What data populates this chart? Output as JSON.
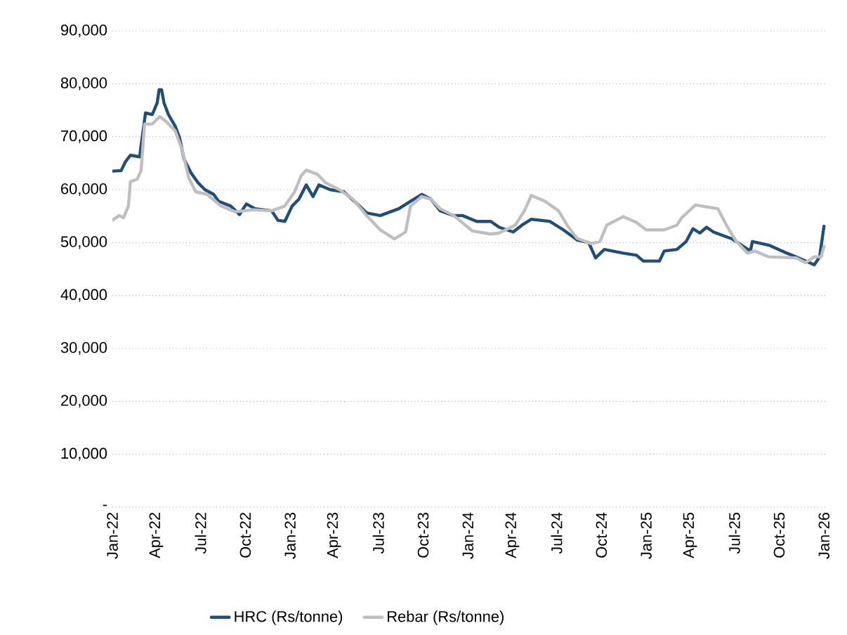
{
  "chart_data": {
    "type": "line",
    "xlim": [
      "2022-01-01",
      "2026-01-05"
    ],
    "ylim": [
      0,
      90000
    ],
    "yticks": [
      {
        "value": 0,
        "label": "-"
      },
      {
        "value": 10000,
        "label": "10,000"
      },
      {
        "value": 20000,
        "label": "20,000"
      },
      {
        "value": 30000,
        "label": "30,000"
      },
      {
        "value": 40000,
        "label": "40,000"
      },
      {
        "value": 50000,
        "label": "50,000"
      },
      {
        "value": 60000,
        "label": "60,000"
      },
      {
        "value": 70000,
        "label": "70,000"
      },
      {
        "value": 80000,
        "label": "80,000"
      },
      {
        "value": 90000,
        "label": "90,000"
      }
    ],
    "xticks": [
      {
        "value": "2022-01-01",
        "label": "Jan-22"
      },
      {
        "value": "2022-04-01",
        "label": "Apr-22"
      },
      {
        "value": "2022-07-01",
        "label": "Jul-22"
      },
      {
        "value": "2022-10-01",
        "label": "Oct-22"
      },
      {
        "value": "2023-01-01",
        "label": "Jan-23"
      },
      {
        "value": "2023-04-01",
        "label": "Apr-23"
      },
      {
        "value": "2023-07-01",
        "label": "Jul-23"
      },
      {
        "value": "2023-10-01",
        "label": "Oct-23"
      },
      {
        "value": "2024-01-01",
        "label": "Jan-24"
      },
      {
        "value": "2024-04-01",
        "label": "Apr-24"
      },
      {
        "value": "2024-07-01",
        "label": "Jul-24"
      },
      {
        "value": "2024-10-01",
        "label": "Oct-24"
      },
      {
        "value": "2025-01-01",
        "label": "Jan-25"
      },
      {
        "value": "2025-04-01",
        "label": "Apr-25"
      },
      {
        "value": "2025-07-01",
        "label": "Jul-25"
      },
      {
        "value": "2025-10-01",
        "label": "Oct-25"
      },
      {
        "value": "2026-01-01",
        "label": "Jan-26"
      }
    ],
    "grid": "y",
    "legend": "bottom",
    "marker": "none",
    "line_style": "solid",
    "series": [
      {
        "name": "HRC (Rs/tonne)",
        "color": "#1f4e79",
        "x": [
          "2022-01-01",
          "2022-01-19",
          "2022-01-28",
          "2022-02-07",
          "2022-02-26",
          "2022-03-01",
          "2022-03-10",
          "2022-03-24",
          "2022-04-03",
          "2022-04-07",
          "2022-04-12",
          "2022-04-17",
          "2022-04-26",
          "2022-05-10",
          "2022-05-19",
          "2022-05-28",
          "2022-06-12",
          "2022-06-26",
          "2022-07-10",
          "2022-07-28",
          "2022-08-07",
          "2022-09-01",
          "2022-09-19",
          "2022-10-03",
          "2022-10-21",
          "2022-11-24",
          "2022-12-07",
          "2022-12-21",
          "2023-01-05",
          "2023-01-19",
          "2023-02-03",
          "2023-02-17",
          "2023-03-01",
          "2023-03-24",
          "2023-04-21",
          "2023-05-19",
          "2023-06-07",
          "2023-07-05",
          "2023-08-12",
          "2023-09-05",
          "2023-09-28",
          "2023-10-17",
          "2023-11-05",
          "2023-12-03",
          "2023-12-21",
          "2024-01-19",
          "2024-02-17",
          "2024-03-05",
          "2024-04-03",
          "2024-04-21",
          "2024-05-10",
          "2024-06-17",
          "2024-07-15",
          "2024-08-12",
          "2024-09-05",
          "2024-09-19",
          "2024-10-07",
          "2024-11-15",
          "2024-12-12",
          "2024-12-26",
          "2025-01-28",
          "2025-02-07",
          "2025-03-05",
          "2025-03-24",
          "2025-04-07",
          "2025-04-21",
          "2025-05-05",
          "2025-05-19",
          "2025-06-26",
          "2025-07-19",
          "2025-08-03",
          "2025-08-07",
          "2025-09-10",
          "2025-10-17",
          "2025-11-15",
          "2025-12-12",
          "2025-12-23",
          "2026-01-01"
        ],
        "values": [
          63500,
          63600,
          65300,
          66500,
          66200,
          68400,
          74500,
          74200,
          76400,
          78900,
          78900,
          76400,
          74200,
          72000,
          69800,
          65800,
          63100,
          61300,
          60000,
          59100,
          57800,
          56900,
          55300,
          57300,
          56400,
          56000,
          54200,
          54000,
          56900,
          58200,
          60900,
          58700,
          60900,
          60000,
          59600,
          57300,
          55600,
          55100,
          56400,
          57800,
          59100,
          58200,
          56000,
          55100,
          55100,
          54000,
          54000,
          52900,
          52000,
          53300,
          54400,
          54000,
          52400,
          50500,
          50000,
          47100,
          48700,
          48000,
          47600,
          46500,
          46500,
          48400,
          48700,
          50200,
          52600,
          51800,
          52900,
          52000,
          50700,
          49300,
          48400,
          50200,
          49500,
          48000,
          46900,
          45800,
          47300,
          53100
        ]
      },
      {
        "name": "Rebar (Rs/tonne)",
        "color": "#bfbfbf",
        "x": [
          "2022-01-01",
          "2022-01-15",
          "2022-01-24",
          "2022-02-03",
          "2022-02-07",
          "2022-02-21",
          "2022-03-01",
          "2022-03-08",
          "2022-03-24",
          "2022-04-08",
          "2022-04-21",
          "2022-05-10",
          "2022-05-24",
          "2022-06-07",
          "2022-06-21",
          "2022-07-15",
          "2022-08-12",
          "2022-09-10",
          "2022-10-17",
          "2022-11-24",
          "2022-12-21",
          "2023-01-10",
          "2023-01-24",
          "2023-02-03",
          "2023-02-26",
          "2023-03-15",
          "2023-04-12",
          "2023-05-10",
          "2023-06-07",
          "2023-07-05",
          "2023-08-03",
          "2023-08-26",
          "2023-09-05",
          "2023-09-28",
          "2023-10-17",
          "2023-11-05",
          "2023-12-03",
          "2023-12-12",
          "2024-01-10",
          "2024-02-17",
          "2024-03-05",
          "2024-04-07",
          "2024-04-26",
          "2024-05-10",
          "2024-06-07",
          "2024-07-05",
          "2024-07-24",
          "2024-08-12",
          "2024-09-10",
          "2024-09-28",
          "2024-10-12",
          "2024-11-15",
          "2024-12-12",
          "2025-01-01",
          "2025-02-07",
          "2025-03-05",
          "2025-03-15",
          "2025-04-12",
          "2025-05-28",
          "2025-06-17",
          "2025-07-05",
          "2025-07-28",
          "2025-08-12",
          "2025-09-10",
          "2025-11-05",
          "2025-11-24",
          "2025-12-12",
          "2025-12-26",
          "2026-01-01"
        ],
        "values": [
          54200,
          55100,
          54700,
          56900,
          61500,
          62000,
          63600,
          72400,
          72400,
          73800,
          72900,
          71100,
          67600,
          62200,
          59600,
          59100,
          56900,
          55800,
          56200,
          56000,
          56900,
          59600,
          62700,
          63700,
          62900,
          61300,
          60000,
          58200,
          55100,
          52400,
          50700,
          52000,
          56900,
          58700,
          58200,
          56400,
          55100,
          54400,
          52200,
          51600,
          51800,
          53300,
          56000,
          58900,
          57800,
          56000,
          53100,
          50800,
          49800,
          50200,
          53300,
          54900,
          53800,
          52400,
          52400,
          53300,
          54700,
          57100,
          56400,
          52900,
          50200,
          48000,
          48400,
          47300,
          47100,
          46200,
          47300,
          47300,
          49300
        ]
      }
    ]
  }
}
